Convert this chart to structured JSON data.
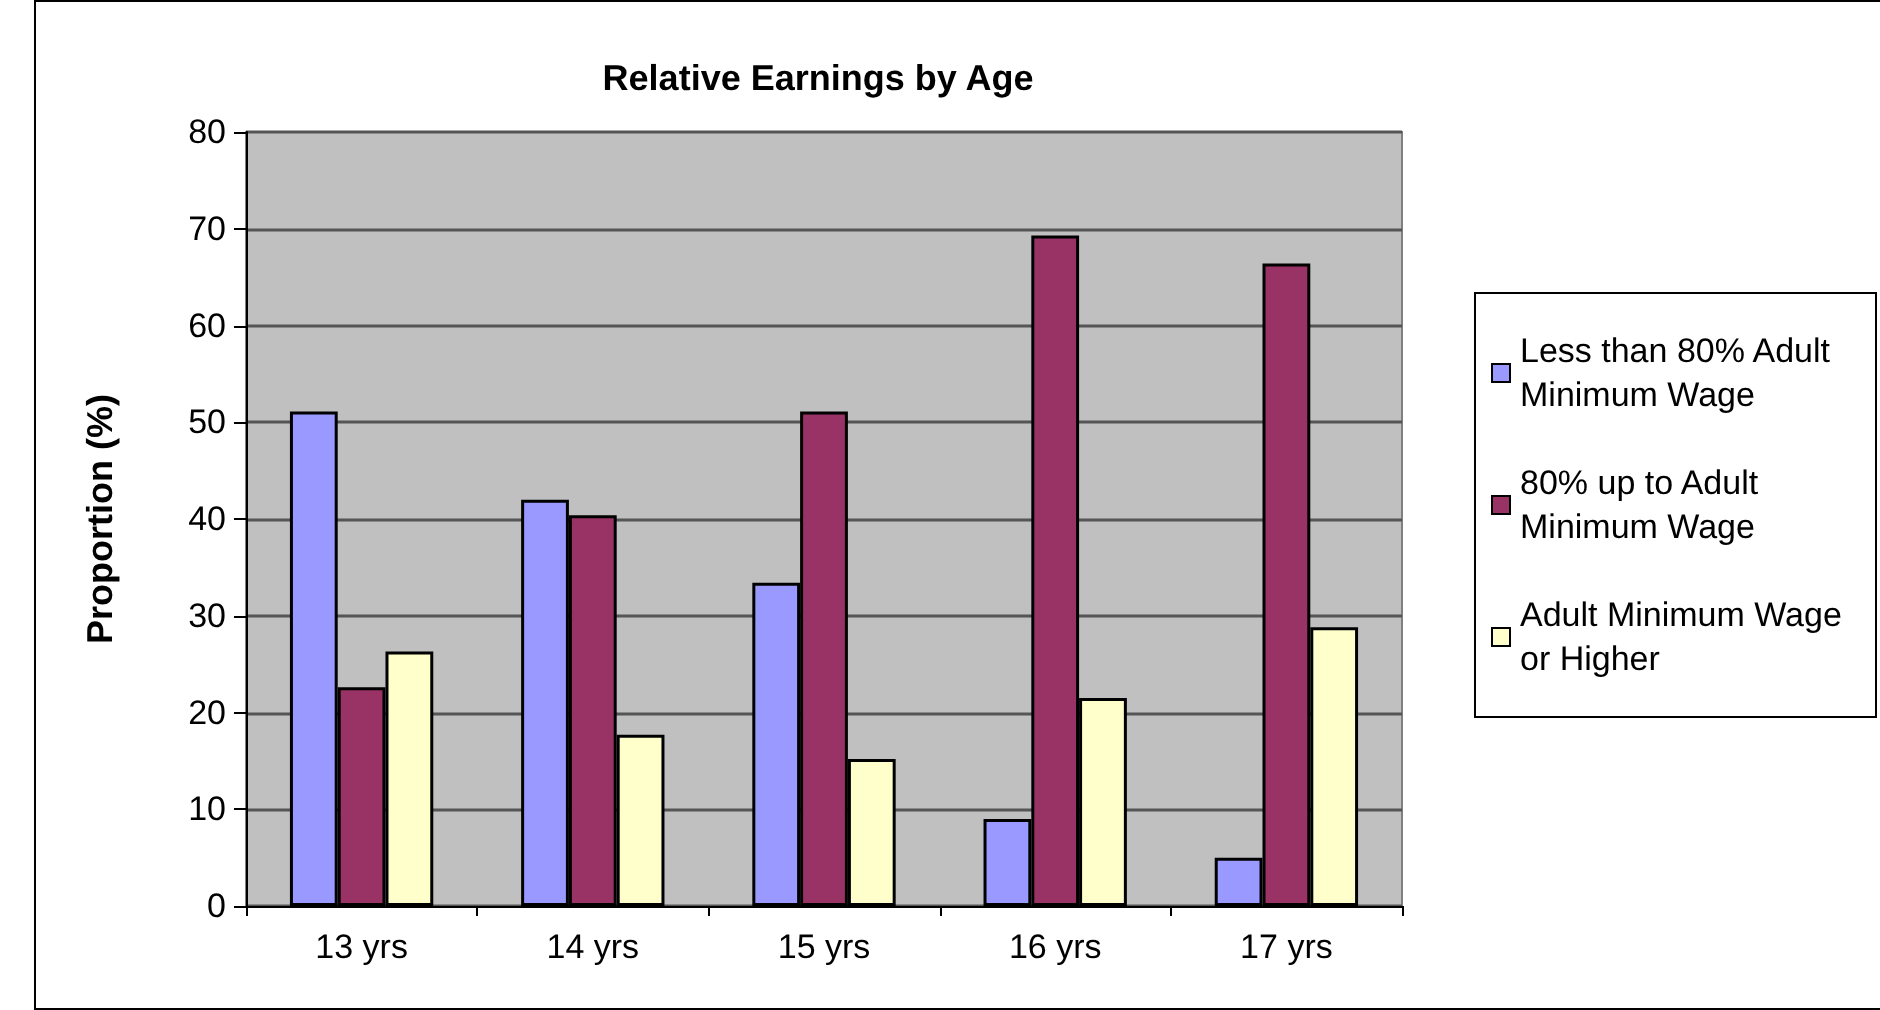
{
  "chart_data": {
    "type": "bar",
    "title": "Relative Earnings by Age",
    "ylabel": "Proportion (%)",
    "categories": [
      "13 yrs",
      "14 yrs",
      "15 yrs",
      "16 yrs",
      "17 yrs"
    ],
    "series": [
      {
        "name": "Less than 80% Adult Minimum Wage",
        "color": "#9999ff",
        "values": [
          51.1,
          42.0,
          33.4,
          9.0,
          5.0
        ]
      },
      {
        "name": "80% up to Adult Minimum Wage",
        "color": "#993366",
        "values": [
          22.6,
          40.4,
          51.1,
          69.3,
          66.4
        ]
      },
      {
        "name": "Adult Minimum Wage or Higher",
        "color": "#ffffcc",
        "values": [
          26.3,
          17.7,
          15.2,
          21.5,
          28.8
        ]
      }
    ],
    "ylim": [
      0,
      80
    ],
    "yticks": [
      0,
      10,
      20,
      30,
      40,
      50,
      60,
      70,
      80
    ],
    "grid": "y",
    "legend": "right"
  }
}
